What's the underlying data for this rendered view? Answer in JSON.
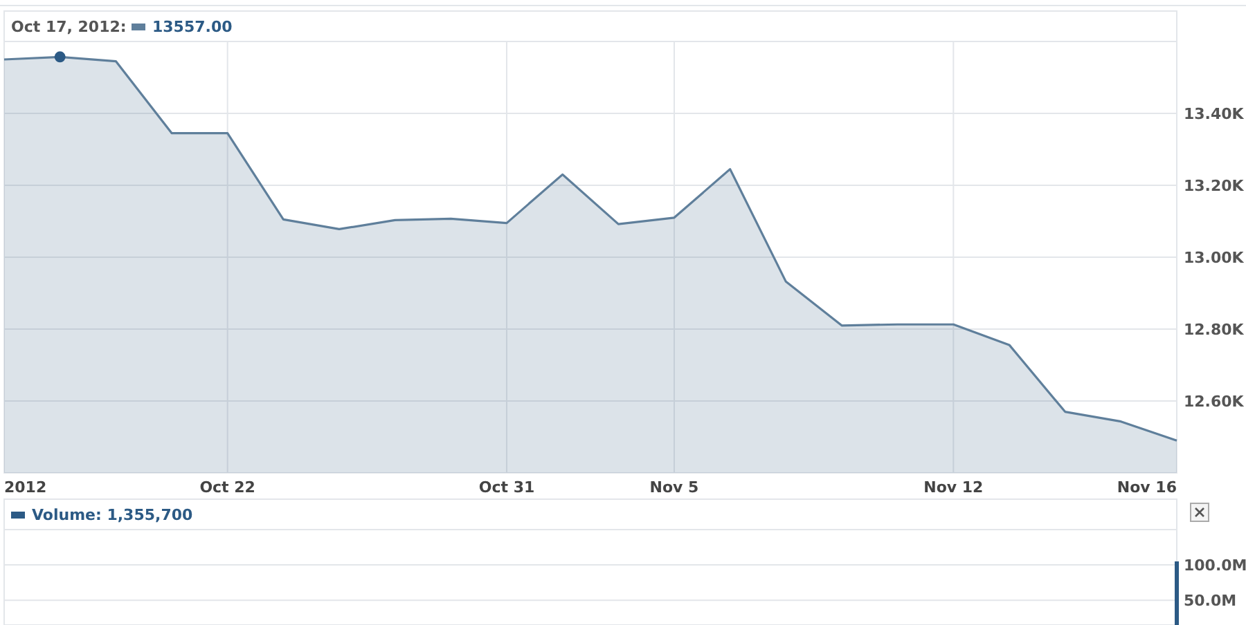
{
  "chart_data": [
    {
      "type": "area",
      "title": "Oct 17, 2012:",
      "annotations": [
        "13557.00"
      ],
      "categories": [
        "2012",
        null,
        null,
        null,
        "Oct 22",
        null,
        null,
        null,
        null,
        "Oct 31",
        null,
        null,
        "Nov 5",
        null,
        null,
        null,
        null,
        "Nov 12",
        null,
        null,
        null,
        "Nov 16"
      ],
      "series": [
        {
          "color": "#5f7f9b",
          "values": [
            13550,
            13557,
            13545,
            13345,
            13345,
            13105,
            13078,
            13103,
            13107,
            13095,
            13230,
            13092,
            13110,
            13245,
            12932,
            12810,
            12813,
            12813,
            12756,
            12570,
            12543,
            12490
          ]
        },
        {
          "type": "scatter",
          "color": "#2c5a85",
          "values": [
            null,
            13557,
            null,
            null,
            null,
            null,
            null,
            null,
            null,
            null,
            null,
            null,
            null,
            null,
            null,
            null,
            null,
            null,
            null,
            null,
            null,
            null
          ]
        }
      ],
      "ylim": [
        12400,
        13600
      ],
      "yticks": [
        {
          "value": 12600,
          "label": "12.60K"
        },
        {
          "value": 12800,
          "label": "12.80K"
        },
        {
          "value": 13000,
          "label": "13.00K"
        },
        {
          "value": 13200,
          "label": "13.20K"
        },
        {
          "value": 13400,
          "label": "13.40K"
        }
      ],
      "grid": true
    },
    {
      "type": "bar",
      "title": "Volume: 1,355,700",
      "categories": [
        null,
        null,
        null,
        null,
        null,
        null,
        null,
        null,
        null,
        null,
        null,
        null,
        null,
        null,
        null,
        null,
        null,
        null,
        null,
        null,
        null,
        null
      ],
      "series": [
        {
          "color": "#2c5a85",
          "values": [
            null,
            null,
            null,
            null,
            null,
            null,
            null,
            null,
            null,
            null,
            null,
            null,
            null,
            null,
            null,
            null,
            null,
            null,
            null,
            null,
            null,
            105000000
          ]
        }
      ],
      "ylim": [
        15000000,
        150000000
      ],
      "yticks": [
        {
          "value": 50000000,
          "label": "50.0M"
        },
        {
          "value": 100000000,
          "label": "100.0M"
        }
      ],
      "grid": true
    }
  ]
}
